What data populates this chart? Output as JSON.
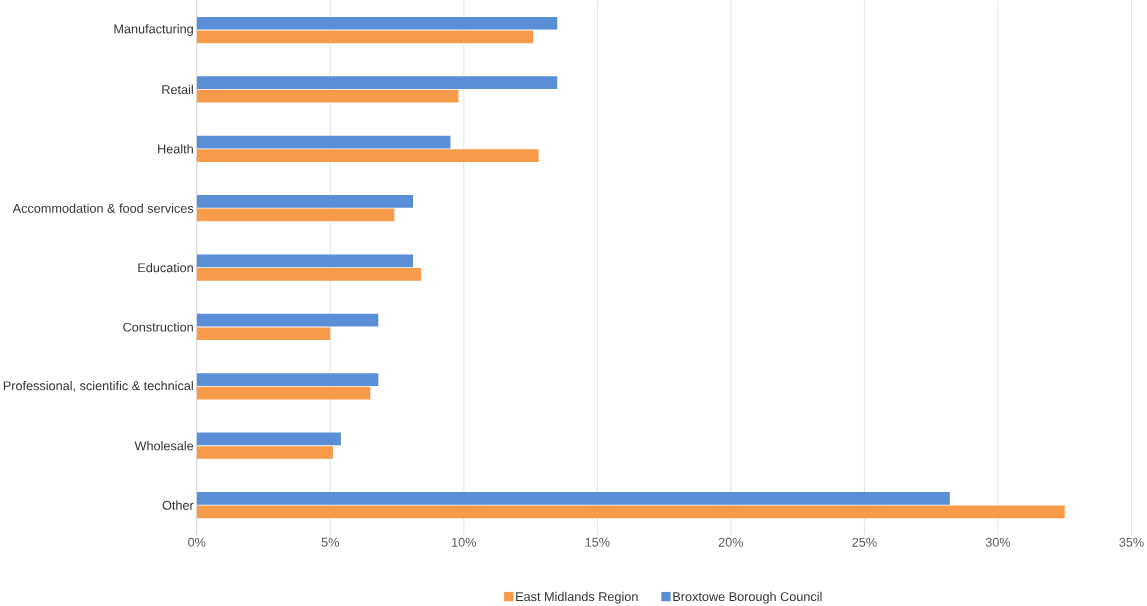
{
  "chart_data": {
    "type": "bar",
    "orientation": "horizontal",
    "categories": [
      "Manufacturing",
      "Retail",
      "Health",
      "Accommodation & food services",
      "Education",
      "Construction",
      "Professional, scientific & technical",
      "Wholesale",
      "Other"
    ],
    "series": [
      {
        "name": "East Midlands Region",
        "color": "#f79a4a",
        "values": [
          12.6,
          9.8,
          12.8,
          7.4,
          8.4,
          5.0,
          6.5,
          5.1,
          32.5
        ]
      },
      {
        "name": "Broxtowe Borough Council",
        "color": "#5a8fd8",
        "values": [
          13.5,
          13.5,
          9.5,
          8.1,
          8.1,
          6.8,
          6.8,
          5.4,
          28.2
        ]
      }
    ],
    "xlim": [
      0,
      35
    ],
    "xticks": [
      {
        "value": 0,
        "label": "0%"
      },
      {
        "value": 5,
        "label": "5%"
      },
      {
        "value": 10,
        "label": "10%"
      },
      {
        "value": 15,
        "label": "15%"
      },
      {
        "value": 20,
        "label": "20%"
      },
      {
        "value": 25,
        "label": "25%"
      },
      {
        "value": 30,
        "label": "30%"
      },
      {
        "value": 35,
        "label": "35%"
      }
    ],
    "grid": "x",
    "legend": "bottom"
  }
}
